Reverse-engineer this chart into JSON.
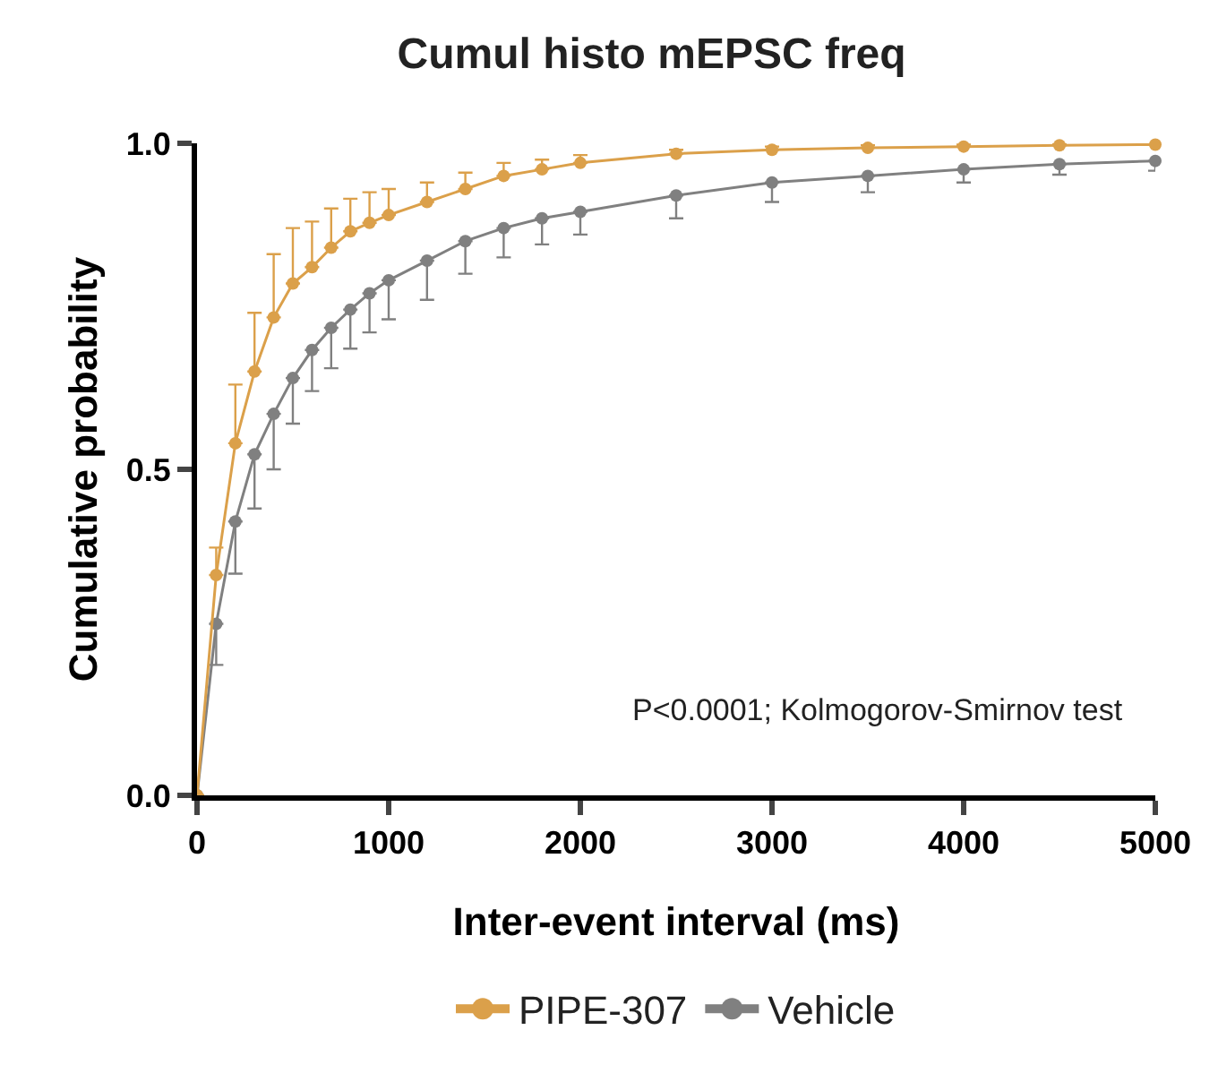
{
  "chart_data": {
    "type": "line",
    "title": "Cumul histo mEPSC freq",
    "xlabel": "Inter-event interval (ms)",
    "ylabel": "Cumulative probability",
    "x": [
      0,
      100,
      200,
      300,
      400,
      500,
      600,
      700,
      800,
      900,
      1000,
      1200,
      1400,
      1600,
      1800,
      2000,
      2500,
      3000,
      3500,
      4000,
      4500,
      5000
    ],
    "series": [
      {
        "name": "PIPE-307",
        "color": "#dba04a",
        "values": [
          0,
          0.338,
          0.54,
          0.65,
          0.733,
          0.785,
          0.81,
          0.84,
          0.865,
          0.878,
          0.89,
          0.91,
          0.93,
          0.95,
          0.96,
          0.97,
          0.984,
          0.99,
          0.993,
          0.995,
          0.997,
          0.998
        ],
        "errors": [
          null,
          [
            0.338,
            0.38
          ],
          [
            0.54,
            0.63
          ],
          [
            0.65,
            0.74
          ],
          [
            0.733,
            0.83
          ],
          [
            0.785,
            0.87
          ],
          [
            0.81,
            0.88
          ],
          [
            0.84,
            0.9
          ],
          [
            0.865,
            0.915
          ],
          [
            0.878,
            0.925
          ],
          [
            0.89,
            0.93
          ],
          [
            0.91,
            0.94
          ],
          [
            0.93,
            0.955
          ],
          [
            0.95,
            0.97
          ],
          [
            0.96,
            0.975
          ],
          [
            0.97,
            0.982
          ],
          [
            0.984,
            0.99
          ],
          [
            0.99,
            0.995
          ],
          [
            0.993,
            0.997
          ],
          [
            0.995,
            0.998
          ],
          [
            0.997,
            0.999
          ],
          [
            0.998,
            0.999
          ]
        ]
      },
      {
        "name": "Vehicle",
        "color": "#808080",
        "values": [
          0,
          0.263,
          0.42,
          0.523,
          0.585,
          0.64,
          0.683,
          0.717,
          0.745,
          0.77,
          0.79,
          0.82,
          0.85,
          0.87,
          0.885,
          0.895,
          0.92,
          0.94,
          0.95,
          0.96,
          0.968,
          0.973
        ],
        "errors": [
          null,
          [
            0.2,
            0.263
          ],
          [
            0.34,
            0.42
          ],
          [
            0.44,
            0.523
          ],
          [
            0.5,
            0.585
          ],
          [
            0.57,
            0.64
          ],
          [
            0.62,
            0.683
          ],
          [
            0.655,
            0.717
          ],
          [
            0.685,
            0.745
          ],
          [
            0.71,
            0.77
          ],
          [
            0.73,
            0.79
          ],
          [
            0.76,
            0.82
          ],
          [
            0.8,
            0.85
          ],
          [
            0.825,
            0.87
          ],
          [
            0.845,
            0.885
          ],
          [
            0.86,
            0.895
          ],
          [
            0.885,
            0.92
          ],
          [
            0.91,
            0.94
          ],
          [
            0.925,
            0.95
          ],
          [
            0.94,
            0.96
          ],
          [
            0.952,
            0.968
          ],
          [
            0.958,
            0.973
          ]
        ]
      }
    ],
    "xlim": [
      0,
      5000
    ],
    "xticks": [
      0,
      1000,
      2000,
      3000,
      4000,
      5000
    ],
    "ylim": [
      0,
      1.0
    ],
    "yticks": [
      {
        "value": 0,
        "label": "0.0"
      },
      0.5,
      {
        "value": 1,
        "label": "1.0"
      }
    ],
    "annotations": [
      "P<0.0001; Kolmogorov-Smirnov test"
    ],
    "marker": "circle",
    "line_style": "solid",
    "legend": "bottom",
    "grid": false
  }
}
